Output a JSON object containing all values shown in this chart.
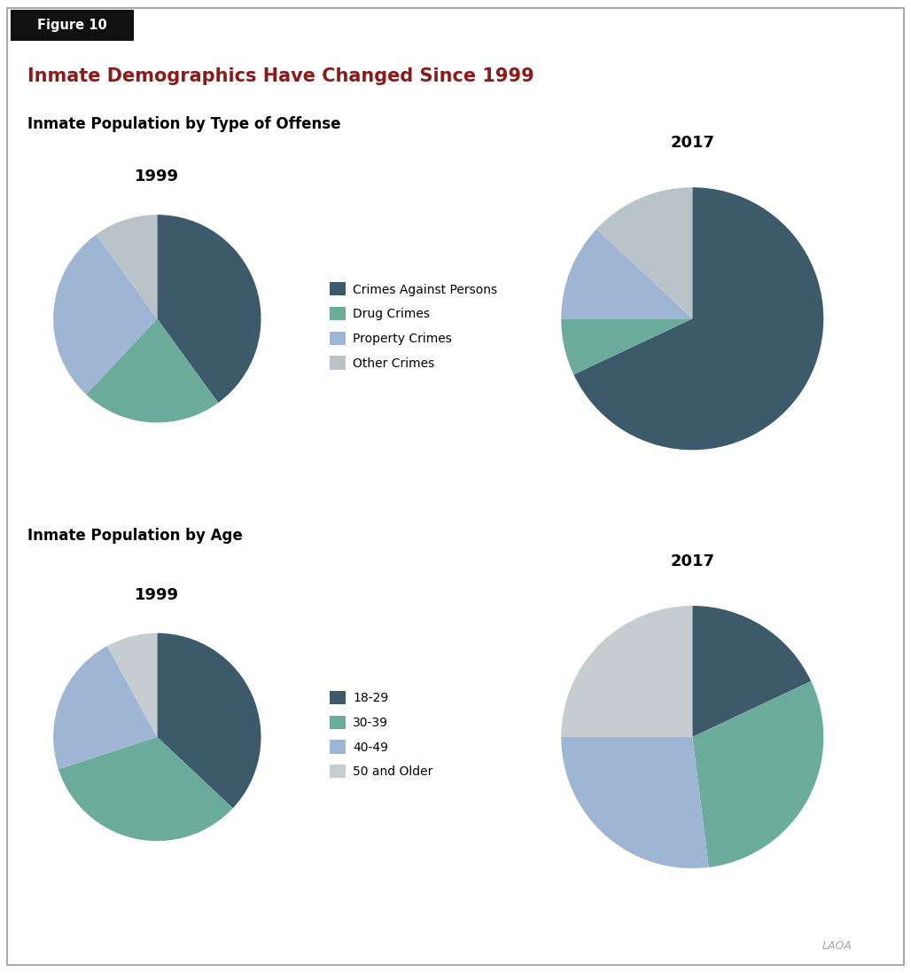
{
  "title": "Inmate Demographics Have Changed Since 1999",
  "figure_label": "Figure 10",
  "subtitle1": "Inmate Population by Type of Offense",
  "subtitle2": "Inmate Population by Age",
  "title_color": "#8B1A1A",
  "subtitle_color": "#000000",
  "figure_label_bg": "#111111",
  "figure_label_color": "#ffffff",
  "offense_1999_values": [
    40,
    22,
    28,
    10
  ],
  "offense_2017_values": [
    68,
    7,
    12,
    13
  ],
  "age_1999_values": [
    37,
    33,
    22,
    8
  ],
  "age_2017_values": [
    18,
    30,
    27,
    25
  ],
  "offense_labels": [
    "Crimes Against Persons",
    "Drug Crimes",
    "Property Crimes",
    "Other Crimes"
  ],
  "offense_colors": [
    "#3d5a6b",
    "#6aab9a",
    "#9eb5d4",
    "#b8c4c8"
  ],
  "age_labels": [
    "18-29",
    "30-39",
    "40-49",
    "50 and Older"
  ],
  "age_colors": [
    "#3d5a6b",
    "#6aab9a",
    "#9eb5d4",
    "#c5cdd0"
  ],
  "year_1999": "1999",
  "year_2017": "2017",
  "watermark": "LAOA",
  "background_color": "#ffffff",
  "border_color": "#aaaaaa"
}
